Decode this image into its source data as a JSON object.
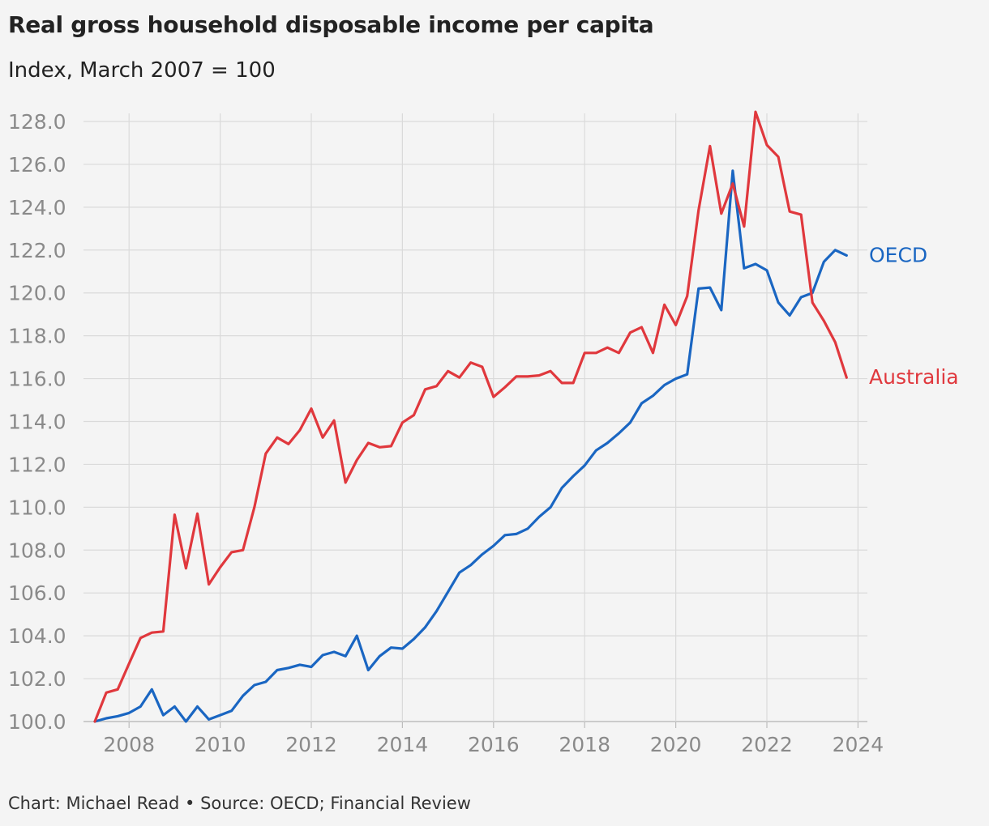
{
  "chart_data": {
    "type": "line",
    "title": "Real gross household disposable income per capita",
    "subtitle": "Index, March 2007 = 100",
    "xlim": [
      2007.0,
      2024.0
    ],
    "ylim": [
      100,
      128
    ],
    "yticks": [
      "100.0",
      "102.0",
      "104.0",
      "106.0",
      "108.0",
      "110.0",
      "112.0",
      "114.0",
      "116.0",
      "118.0",
      "120.0",
      "122.0",
      "124.0",
      "126.0",
      "128.0"
    ],
    "xticks": [
      "2008",
      "2010",
      "2012",
      "2014",
      "2016",
      "2018",
      "2020",
      "2022",
      "2024"
    ],
    "grid": true,
    "start_quarter": "2007 Q1",
    "series": [
      {
        "name": "OECD",
        "color": "#1a66c2",
        "values": [
          100.0,
          100.15,
          100.25,
          100.4,
          100.7,
          101.5,
          100.3,
          100.7,
          100.0,
          100.7,
          100.1,
          100.3,
          100.5,
          101.2,
          101.7,
          101.85,
          102.4,
          102.5,
          102.65,
          102.55,
          103.1,
          103.25,
          103.05,
          104.0,
          102.4,
          103.05,
          103.45,
          103.4,
          103.85,
          104.4,
          105.15,
          106.05,
          106.95,
          107.3,
          107.8,
          108.2,
          108.7,
          108.75,
          109.0,
          109.55,
          110.0,
          110.9,
          111.45,
          111.95,
          112.65,
          113.0,
          113.45,
          113.95,
          114.85,
          115.2,
          115.7,
          116.0,
          116.2,
          120.2,
          120.25,
          119.2,
          125.7,
          121.15,
          121.35,
          121.05,
          119.55,
          118.95,
          119.8,
          120.0,
          121.45,
          122.0,
          121.75
        ]
      },
      {
        "name": "Australia",
        "color": "#e0383d",
        "values": [
          100.0,
          101.35,
          101.5,
          102.7,
          103.9,
          104.15,
          104.2,
          109.65,
          107.15,
          109.7,
          106.4,
          107.2,
          107.9,
          108.0,
          110.0,
          112.5,
          113.25,
          112.95,
          113.6,
          114.6,
          113.25,
          114.05,
          111.15,
          112.2,
          113.0,
          112.8,
          112.85,
          113.95,
          114.3,
          115.5,
          115.65,
          116.35,
          116.05,
          116.75,
          116.55,
          115.15,
          115.6,
          116.1,
          116.1,
          116.15,
          116.35,
          115.8,
          115.8,
          117.2,
          117.2,
          117.45,
          117.2,
          118.15,
          118.4,
          117.2,
          119.45,
          118.5,
          119.85,
          123.85,
          126.85,
          123.7,
          125.1,
          123.1,
          128.45,
          126.9,
          126.35,
          123.8,
          123.65,
          119.55,
          118.7,
          117.7,
          116.05
        ]
      }
    ]
  },
  "footer": "Chart: Michael Read • Source: OECD; Financial Review"
}
